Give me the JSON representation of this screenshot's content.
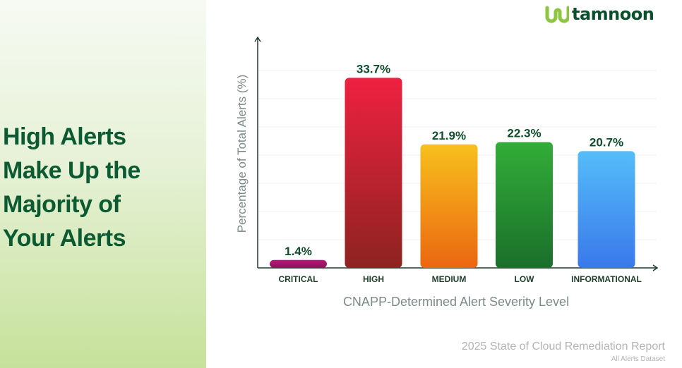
{
  "headline": [
    "High Alerts",
    "Make Up the",
    "Majority of",
    "Your Alerts"
  ],
  "brand": {
    "name": "tamnoon",
    "icon": "wave-logo-icon",
    "color": "#0b4f2c",
    "icon_color": "#8dc63f"
  },
  "footer": {
    "title": "2025 State of Cloud Remediation Report",
    "subtitle": "All Alerts Dataset"
  },
  "colors": {
    "headline": "#0c5a32",
    "label_text": "#0f4d2c",
    "axis_title": "#7d8a8a"
  },
  "chart_data": {
    "type": "bar",
    "categories": [
      "CRITICAL",
      "HIGH",
      "MEDIUM",
      "LOW",
      "INFORMATIONAL"
    ],
    "values": [
      1.4,
      33.7,
      21.9,
      22.3,
      20.7
    ],
    "value_labels": [
      "1.4%",
      "33.7%",
      "21.9%",
      "22.3%",
      "20.7%"
    ],
    "bar_colors": [
      [
        "#b8187a",
        "#8a1358"
      ],
      [
        "#ee2141",
        "#8d2320"
      ],
      [
        "#f7c01d",
        "#eb6611"
      ],
      [
        "#33ad38",
        "#1a6f2b"
      ],
      [
        "#55bdf8",
        "#3a78ea"
      ]
    ],
    "title": "",
    "xlabel": "CNAPP-Determined Alert Severity Level",
    "ylabel": "Percentage of Total Alerts (%)",
    "ylim": [
      0,
      40
    ],
    "grid": true,
    "legend": "none"
  }
}
